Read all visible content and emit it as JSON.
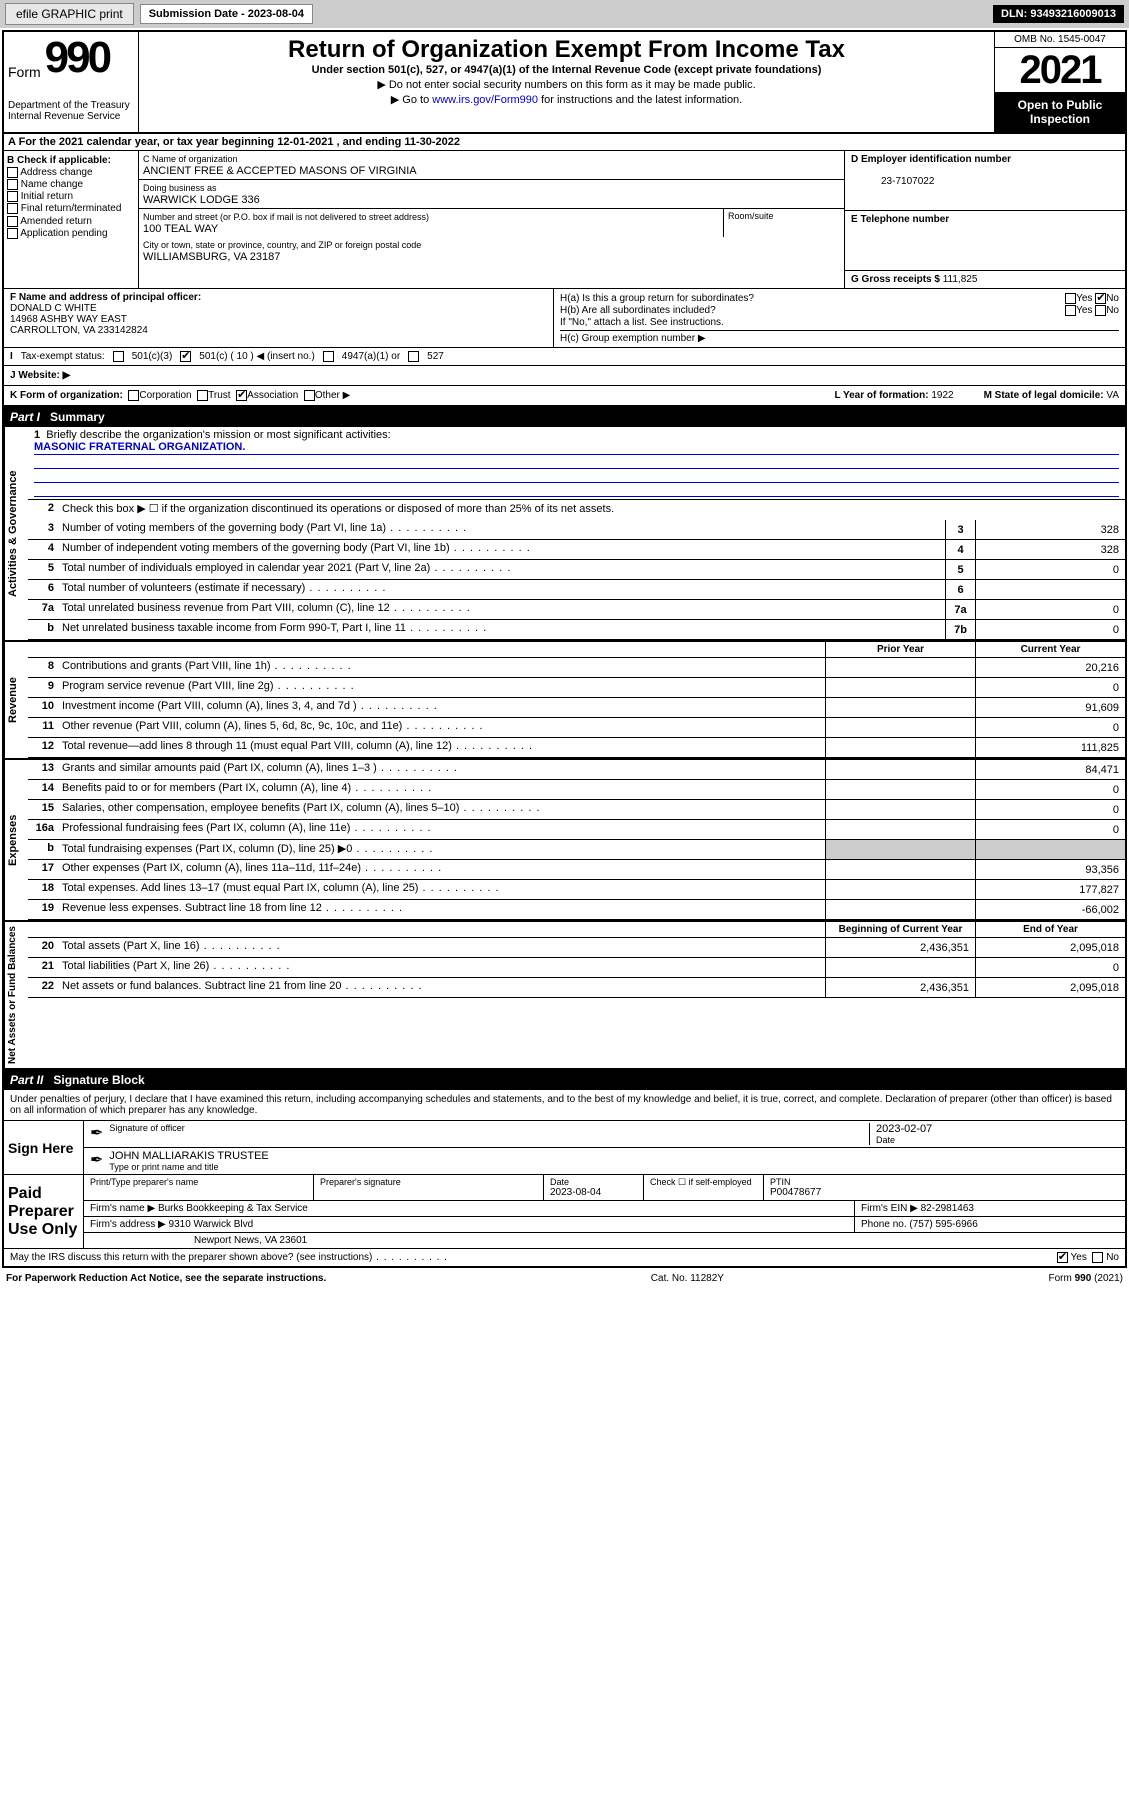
{
  "toolbar": {
    "efile": "efile GRAPHIC print",
    "sub_date_lbl": "Submission Date - ",
    "sub_date": "2023-08-04",
    "dln_lbl": "DLN: ",
    "dln": "93493216009013"
  },
  "header": {
    "form_word": "Form",
    "form_num": "990",
    "dept": "Department of the Treasury\nInternal Revenue Service",
    "title": "Return of Organization Exempt From Income Tax",
    "sub": "Under section 501(c), 527, or 4947(a)(1) of the Internal Revenue Code (except private foundations)",
    "note1": "▶ Do not enter social security numbers on this form as it may be made public.",
    "note2_pre": "▶ Go to ",
    "note2_link": "www.irs.gov/Form990",
    "note2_post": " for instructions and the latest information.",
    "omb": "OMB No. 1545-0047",
    "year": "2021",
    "inspect": "Open to Public Inspection"
  },
  "row_a": "For the 2021 calendar year, or tax year beginning 12-01-2021   , and ending 11-30-2022",
  "col_b": {
    "lbl": "B Check if applicable:",
    "items": [
      "Address change",
      "Name change",
      "Initial return",
      "Final return/terminated",
      "Amended return",
      "Application pending"
    ]
  },
  "col_c": {
    "name_lbl": "C Name of organization",
    "name": "ANCIENT FREE & ACCEPTED MASONS OF VIRGINIA",
    "dba_lbl": "Doing business as",
    "dba": "WARWICK LODGE 336",
    "addr_lbl": "Number and street (or P.O. box if mail is not delivered to street address)",
    "room_lbl": "Room/suite",
    "addr": "100 TEAL WAY",
    "city_lbl": "City or town, state or province, country, and ZIP or foreign postal code",
    "city": "WILLIAMSBURG, VA  23187"
  },
  "col_d": {
    "ein_lbl": "D Employer identification number",
    "ein": "23-7107022",
    "tel_lbl": "E Telephone number",
    "gross_lbl": "G Gross receipts $ ",
    "gross": "111,825"
  },
  "col_f": {
    "lbl": "F  Name and address of principal officer:",
    "name": "DONALD C WHITE",
    "addr": "14968 ASHBY WAY EAST\nCARROLLTON, VA  233142824"
  },
  "col_h": {
    "ha_lbl": "H(a)  Is this a group return for subordinates?",
    "hb_lbl": "H(b)  Are all subordinates included?",
    "hb_note": "If \"No,\" attach a list. See instructions.",
    "hc_lbl": "H(c)  Group exemption number ▶",
    "yes": "Yes",
    "no": "No"
  },
  "row_i": {
    "lbl": "Tax-exempt status:",
    "opt1": "501(c)(3)",
    "opt2_pre": "501(c) ( ",
    "opt2_val": "10",
    "opt2_post": " ) ◀ (insert no.)",
    "opt3": "4947(a)(1) or",
    "opt4": "527"
  },
  "row_j": {
    "lbl": "J   Website: ▶"
  },
  "row_k": {
    "lbl": "K Form of organization:",
    "opts": [
      "Corporation",
      "Trust",
      "Association",
      "Other ▶"
    ],
    "checked": 2,
    "year_lbl": "L Year of formation: ",
    "year": "1922",
    "state_lbl": "M State of legal domicile: ",
    "state": "VA"
  },
  "part1": {
    "lbl": "Part I",
    "title": "Summary"
  },
  "summary": {
    "gov_lbl": "Activities & Governance",
    "q1": "Briefly describe the organization's mission or most significant activities:",
    "mission": "MASONIC FRATERNAL ORGANIZATION.",
    "q2": "Check this box ▶ ☐  if the organization discontinued its operations or disposed of more than 25% of its net assets.",
    "lines_gov": [
      {
        "n": "3",
        "d": "Number of voting members of the governing body (Part VI, line 1a)",
        "b": "3",
        "v": "328"
      },
      {
        "n": "4",
        "d": "Number of independent voting members of the governing body (Part VI, line 1b)",
        "b": "4",
        "v": "328"
      },
      {
        "n": "5",
        "d": "Total number of individuals employed in calendar year 2021 (Part V, line 2a)",
        "b": "5",
        "v": "0"
      },
      {
        "n": "6",
        "d": "Total number of volunteers (estimate if necessary)",
        "b": "6",
        "v": ""
      },
      {
        "n": "7a",
        "d": "Total unrelated business revenue from Part VIII, column (C), line 12",
        "b": "7a",
        "v": "0"
      },
      {
        "n": "b",
        "d": "Net unrelated business taxable income from Form 990-T, Part I, line 11",
        "b": "7b",
        "v": "0"
      }
    ],
    "rev_lbl": "Revenue",
    "hdr_prior": "Prior Year",
    "hdr_curr": "Current Year",
    "lines_rev": [
      {
        "n": "8",
        "d": "Contributions and grants (Part VIII, line 1h)",
        "p": "",
        "c": "20,216"
      },
      {
        "n": "9",
        "d": "Program service revenue (Part VIII, line 2g)",
        "p": "",
        "c": "0"
      },
      {
        "n": "10",
        "d": "Investment income (Part VIII, column (A), lines 3, 4, and 7d )",
        "p": "",
        "c": "91,609"
      },
      {
        "n": "11",
        "d": "Other revenue (Part VIII, column (A), lines 5, 6d, 8c, 9c, 10c, and 11e)",
        "p": "",
        "c": "0"
      },
      {
        "n": "12",
        "d": "Total revenue—add lines 8 through 11 (must equal Part VIII, column (A), line 12)",
        "p": "",
        "c": "111,825"
      }
    ],
    "exp_lbl": "Expenses",
    "lines_exp": [
      {
        "n": "13",
        "d": "Grants and similar amounts paid (Part IX, column (A), lines 1–3 )",
        "p": "",
        "c": "84,471"
      },
      {
        "n": "14",
        "d": "Benefits paid to or for members (Part IX, column (A), line 4)",
        "p": "",
        "c": "0"
      },
      {
        "n": "15",
        "d": "Salaries, other compensation, employee benefits (Part IX, column (A), lines 5–10)",
        "p": "",
        "c": "0"
      },
      {
        "n": "16a",
        "d": "Professional fundraising fees (Part IX, column (A), line 11e)",
        "p": "",
        "c": "0"
      },
      {
        "n": "b",
        "d": "Total fundraising expenses (Part IX, column (D), line 25) ▶0",
        "p": "gray",
        "c": "gray"
      },
      {
        "n": "17",
        "d": "Other expenses (Part IX, column (A), lines 11a–11d, 11f–24e)",
        "p": "",
        "c": "93,356"
      },
      {
        "n": "18",
        "d": "Total expenses. Add lines 13–17 (must equal Part IX, column (A), line 25)",
        "p": "",
        "c": "177,827"
      },
      {
        "n": "19",
        "d": "Revenue less expenses. Subtract line 18 from line 12",
        "p": "",
        "c": "-66,002"
      }
    ],
    "net_lbl": "Net Assets or Fund Balances",
    "hdr_beg": "Beginning of Current Year",
    "hdr_end": "End of Year",
    "lines_net": [
      {
        "n": "20",
        "d": "Total assets (Part X, line 16)",
        "p": "2,436,351",
        "c": "2,095,018"
      },
      {
        "n": "21",
        "d": "Total liabilities (Part X, line 26)",
        "p": "",
        "c": "0"
      },
      {
        "n": "22",
        "d": "Net assets or fund balances. Subtract line 21 from line 20",
        "p": "2,436,351",
        "c": "2,095,018"
      }
    ]
  },
  "part2": {
    "lbl": "Part II",
    "title": "Signature Block"
  },
  "sig": {
    "decl": "Under penalties of perjury, I declare that I have examined this return, including accompanying schedules and statements, and to the best of my knowledge and belief, it is true, correct, and complete. Declaration of preparer (other than officer) is based on all information of which preparer has any knowledge.",
    "sign_here": "Sign Here",
    "sig_lbl": "Signature of officer",
    "date": "2023-02-07",
    "date_lbl": "Date",
    "name": "JOHN MALLIARAKIS TRUSTEE",
    "name_lbl": "Type or print name and title"
  },
  "prep": {
    "paid": "Paid Preparer Use Only",
    "h1": "Print/Type preparer's name",
    "h2": "Preparer's signature",
    "h3_lbl": "Date",
    "h3": "2023-08-04",
    "h4_lbl": "Check ☐ if self-employed",
    "h5_lbl": "PTIN",
    "h5": "P00478677",
    "firm_lbl": "Firm's name    ▶ ",
    "firm": "Burks Bookkeeping & Tax Service",
    "ein_lbl": "Firm's EIN ▶ ",
    "ein": "82-2981463",
    "addr_lbl": "Firm's address ▶ ",
    "addr1": "9310 Warwick Blvd",
    "addr2": "Newport News, VA  23601",
    "phone_lbl": "Phone no. ",
    "phone": "(757) 595-6966"
  },
  "footer": {
    "q": "May the IRS discuss this return with the preparer shown above? (see instructions)",
    "yes": "Yes",
    "no": "No",
    "pra": "For Paperwork Reduction Act Notice, see the separate instructions.",
    "cat": "Cat. No. 11282Y",
    "form": "Form 990 (2021)"
  }
}
